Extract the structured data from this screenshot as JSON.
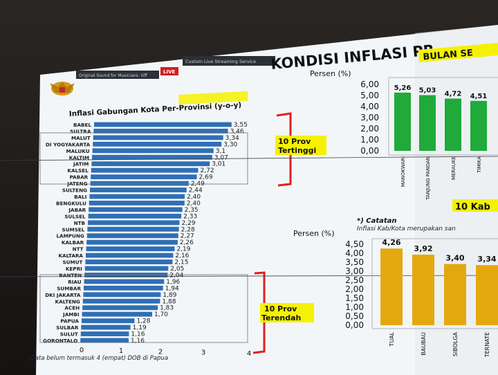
{
  "header": {
    "title": "KONDISI INFLASI PR",
    "subtitle": "BULAN SE",
    "toolbar": {
      "sound": "Original Sound for Musicians: Off",
      "live": "LIVE",
      "service": "Custom Live Streaming Service"
    }
  },
  "colors": {
    "bar_blue": "#2f6fb5",
    "bar_green": "#1faa3a",
    "bar_gold": "#e4a80f",
    "bracket_red": "#e02020",
    "highlight_yellow": "#f4f200"
  },
  "chart_data": [
    {
      "type": "bar",
      "orientation": "horizontal",
      "title_prefix": "Inflasi Gabungan Kota ",
      "title_highlight": "Per-Provinsi",
      "title_suffix": " (y-o-y)",
      "categories": [
        "BABEL",
        "SULTRA",
        "MALUT",
        "DI YOGYAKARTA",
        "MALUKU",
        "KALTIM",
        "JATIM",
        "KALSEL",
        "PABAR",
        "JATENG",
        "SULTENG",
        "BALI",
        "BENGKULU",
        "JABAR",
        "SULSEL",
        "NTB",
        "SUMSEL",
        "LAMPUNG",
        "KALBAR",
        "NTT",
        "KALTARA",
        "SUMUT",
        "KEPRI",
        "BANTEN",
        "RIAU",
        "SUMBAR",
        "DKI JAKARTA",
        "KALTENG",
        "ACEH",
        "JAMBI",
        "PAPUA",
        "SULBAR",
        "SULUT",
        "GORONTALO"
      ],
      "values": [
        3.55,
        3.46,
        3.34,
        3.3,
        3.1,
        3.07,
        3.01,
        2.72,
        2.69,
        2.49,
        2.44,
        2.4,
        2.4,
        2.35,
        2.33,
        2.29,
        2.28,
        2.27,
        2.26,
        2.19,
        2.16,
        2.15,
        2.05,
        2.04,
        1.96,
        1.94,
        1.89,
        1.88,
        1.83,
        1.7,
        1.28,
        1.19,
        1.16,
        1.16
      ],
      "value_labels": [
        "3,55",
        "3,46",
        "3,34",
        "3,30",
        "3,1",
        "3,07",
        "3,01",
        "2,72",
        "2,69",
        "2,49",
        "2,44",
        "2,40",
        "2,40",
        "2,35",
        "2,33",
        "2,29",
        "2,28",
        "2,27",
        "2,26",
        "2,19",
        "2,16",
        "2,15",
        "2,05",
        "2,04",
        "1,96",
        "1,94",
        "1,89",
        "1,88",
        "1,83",
        "1,70",
        "1,28",
        "1,19",
        "1,16",
        "1,16"
      ],
      "x_ticks": [
        "0",
        "1",
        "2",
        "3",
        "4"
      ],
      "xlim": [
        0,
        4
      ],
      "annotations": {
        "top": [
          "10 Prov",
          "Tertinggi"
        ],
        "bottom": [
          "10 Prov",
          "Terendah"
        ]
      },
      "footnote": "*Data belum termasuk 4 (empat) DOB di Papua"
    },
    {
      "type": "bar",
      "ylabel": "Persen (%)",
      "y_ticks": [
        "6,00",
        "5,00",
        "4,00",
        "3,00",
        "2,00",
        "1,00",
        "0,00"
      ],
      "ylim": [
        0,
        6
      ],
      "categories": [
        "MANOKWARI",
        "TANJUNG PANDAN",
        "MERAUKE",
        "TIMIKA"
      ],
      "values": [
        5.26,
        5.03,
        4.72,
        4.51
      ],
      "value_labels": [
        "5,26",
        "5,03",
        "4,72",
        "4,51"
      ],
      "caption": "10 Kab"
    },
    {
      "type": "bar",
      "ylabel": "Persen (%)",
      "y_ticks": [
        "4,50",
        "4,00",
        "3,50",
        "3,00",
        "2,50",
        "2,00",
        "1,50",
        "1,00",
        "0,50",
        "0,00"
      ],
      "ylim": [
        0,
        4.5
      ],
      "categories": [
        "TUAL",
        "BAUBAU",
        "SIBOLGA",
        "TERNATE"
      ],
      "values": [
        4.26,
        3.92,
        3.4,
        3.34
      ],
      "value_labels": [
        "4,26",
        "3,92",
        "3,40",
        "3,34"
      ],
      "note_title": "*) Catatan",
      "note_text": "Inflasi Kab/Kota merupakan san"
    }
  ]
}
